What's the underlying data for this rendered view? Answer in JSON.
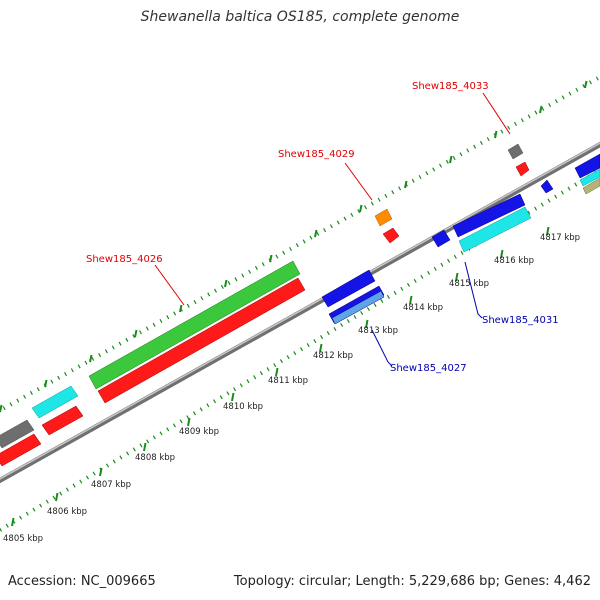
{
  "title": "Shewanella baltica OS185, complete genome",
  "footer": {
    "accession": "Accession: NC_009665",
    "topology": "Topology: circular; Length: 5,229,686 bp; Genes: 4,462"
  },
  "scale_labels": [
    "4805 kbp",
    "4806 kbp",
    "4807 kbp",
    "4808 kbp",
    "4809 kbp",
    "4810 kbp",
    "4811 kbp",
    "4812 kbp",
    "4813 kbp",
    "4814 kbp",
    "4815 kbp",
    "4816 kbp",
    "4817 kbp"
  ],
  "gene_labels": [
    {
      "name": "Shew185_4026",
      "strand": "forward",
      "color": "#e00000"
    },
    {
      "name": "Shew185_4029",
      "strand": "forward",
      "color": "#e00000"
    },
    {
      "name": "Shew185_4033",
      "strand": "forward",
      "color": "#e00000"
    },
    {
      "name": "Shew185_4027",
      "strand": "reverse",
      "color": "#0000b0"
    },
    {
      "name": "Shew185_4031",
      "strand": "reverse",
      "color": "#0000b0"
    }
  ],
  "colors": {
    "backbone": "#8c8c8c",
    "tick": "#1a8a1a",
    "cds_forward": "#ff1a1a",
    "cds_reverse": "#1414e6",
    "rna_green": "#3cc83c",
    "cyan": "#1ee6e6",
    "gray": "#6e6e6e",
    "orange": "#ff8c00"
  }
}
